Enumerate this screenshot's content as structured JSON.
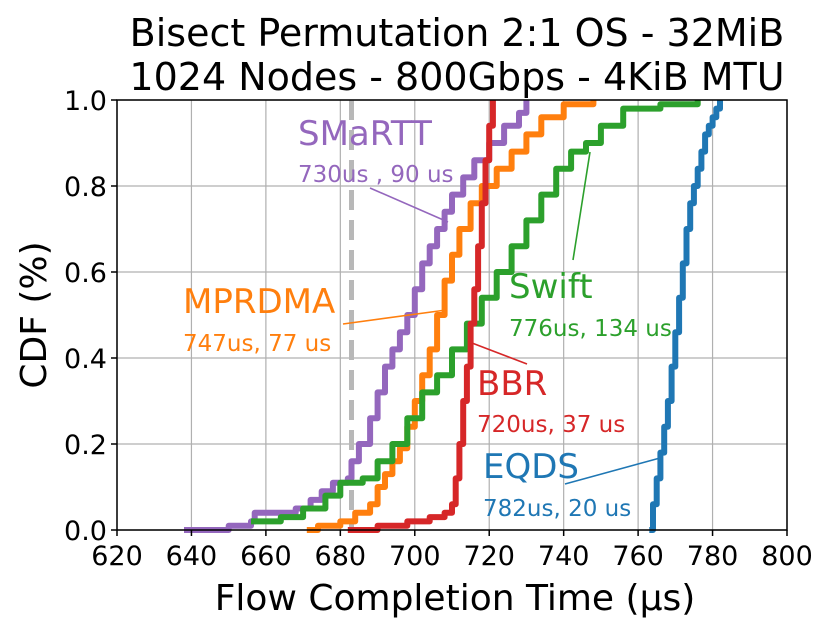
{
  "chart_data": {
    "type": "line",
    "title": [
      "Bisect Permutation 2:1 OS - 32MiB",
      "1024 Nodes - 800Gbps - 4KiB MTU"
    ],
    "xlabel": "Flow Completion Time (µs)",
    "ylabel": "CDF (%)",
    "xlim": [
      620,
      800
    ],
    "ylim": [
      0,
      1
    ],
    "xticks": [
      620,
      640,
      660,
      680,
      700,
      720,
      740,
      760,
      780,
      800
    ],
    "yticks": [
      "0.0",
      "0.2",
      "0.4",
      "0.6",
      "0.8",
      "1.0"
    ],
    "grid": true,
    "reference_line": {
      "x": 683,
      "color": "#b8b8b8",
      "style": "dashed"
    },
    "series": [
      {
        "name": "SMaRTT",
        "stats": "730us , 90 us",
        "color": "#9467bd",
        "points": [
          [
            638,
            0.0
          ],
          [
            650,
            0.01
          ],
          [
            656,
            0.02
          ],
          [
            657,
            0.04
          ],
          [
            668,
            0.05
          ],
          [
            672,
            0.07
          ],
          [
            675,
            0.09
          ],
          [
            678,
            0.11
          ],
          [
            682,
            0.12
          ],
          [
            683,
            0.16
          ],
          [
            685,
            0.2
          ],
          [
            688,
            0.26
          ],
          [
            690,
            0.32
          ],
          [
            692,
            0.38
          ],
          [
            694,
            0.42
          ],
          [
            696,
            0.46
          ],
          [
            698,
            0.5
          ],
          [
            700,
            0.56
          ],
          [
            702,
            0.62
          ],
          [
            704,
            0.66
          ],
          [
            706,
            0.7
          ],
          [
            708,
            0.74
          ],
          [
            710,
            0.78
          ],
          [
            713,
            0.82
          ],
          [
            716,
            0.86
          ],
          [
            720,
            0.9
          ],
          [
            724,
            0.94
          ],
          [
            728,
            0.97
          ],
          [
            730,
            1.0
          ]
        ]
      },
      {
        "name": "MPRDMA",
        "stats": "747us, 77 us",
        "color": "#ff7f0e",
        "points": [
          [
            671,
            0.0
          ],
          [
            674,
            0.01
          ],
          [
            680,
            0.02
          ],
          [
            684,
            0.04
          ],
          [
            688,
            0.06
          ],
          [
            690,
            0.1
          ],
          [
            692,
            0.13
          ],
          [
            694,
            0.16
          ],
          [
            696,
            0.19
          ],
          [
            698,
            0.24
          ],
          [
            700,
            0.3
          ],
          [
            702,
            0.36
          ],
          [
            704,
            0.42
          ],
          [
            706,
            0.5
          ],
          [
            708,
            0.58
          ],
          [
            710,
            0.64
          ],
          [
            712,
            0.7
          ],
          [
            715,
            0.76
          ],
          [
            718,
            0.8
          ],
          [
            722,
            0.84
          ],
          [
            726,
            0.88
          ],
          [
            730,
            0.92
          ],
          [
            734,
            0.96
          ],
          [
            740,
            0.99
          ],
          [
            748,
            1.0
          ]
        ]
      },
      {
        "name": "Swift",
        "stats": "776us, 134 us",
        "color": "#2ca02c",
        "points": [
          [
            656,
            0.02
          ],
          [
            664,
            0.03
          ],
          [
            670,
            0.05
          ],
          [
            676,
            0.08
          ],
          [
            680,
            0.11
          ],
          [
            686,
            0.12
          ],
          [
            690,
            0.16
          ],
          [
            694,
            0.2
          ],
          [
            698,
            0.26
          ],
          [
            702,
            0.32
          ],
          [
            706,
            0.36
          ],
          [
            710,
            0.42
          ],
          [
            714,
            0.48
          ],
          [
            718,
            0.54
          ],
          [
            722,
            0.6
          ],
          [
            726,
            0.66
          ],
          [
            730,
            0.72
          ],
          [
            734,
            0.78
          ],
          [
            738,
            0.84
          ],
          [
            742,
            0.88
          ],
          [
            746,
            0.9
          ],
          [
            750,
            0.94
          ],
          [
            756,
            0.98
          ],
          [
            766,
            0.99
          ],
          [
            776,
            1.0
          ]
        ]
      },
      {
        "name": "BBR",
        "stats": "720us, 37 us",
        "color": "#d62728",
        "points": [
          [
            682,
            0.0
          ],
          [
            690,
            0.01
          ],
          [
            698,
            0.02
          ],
          [
            704,
            0.03
          ],
          [
            708,
            0.04
          ],
          [
            710,
            0.06
          ],
          [
            711,
            0.12
          ],
          [
            712,
            0.2
          ],
          [
            713,
            0.3
          ],
          [
            714,
            0.38
          ],
          [
            715,
            0.48
          ],
          [
            716,
            0.56
          ],
          [
            717,
            0.66
          ],
          [
            718,
            0.76
          ],
          [
            719,
            0.86
          ],
          [
            720,
            0.94
          ],
          [
            721,
            1.0
          ]
        ]
      },
      {
        "name": "EQDS",
        "stats": "782us, 20 us",
        "color": "#1f77b4",
        "points": [
          [
            763,
            0.0
          ],
          [
            764,
            0.06
          ],
          [
            765,
            0.12
          ],
          [
            766,
            0.18
          ],
          [
            767,
            0.24
          ],
          [
            768,
            0.3
          ],
          [
            769,
            0.38
          ],
          [
            770,
            0.46
          ],
          [
            771,
            0.54
          ],
          [
            772,
            0.62
          ],
          [
            773,
            0.7
          ],
          [
            774,
            0.76
          ],
          [
            775,
            0.8
          ],
          [
            776,
            0.84
          ],
          [
            777,
            0.88
          ],
          [
            778,
            0.92
          ],
          [
            779,
            0.94
          ],
          [
            780,
            0.96
          ],
          [
            781,
            0.98
          ],
          [
            782,
            1.0
          ]
        ]
      }
    ]
  }
}
